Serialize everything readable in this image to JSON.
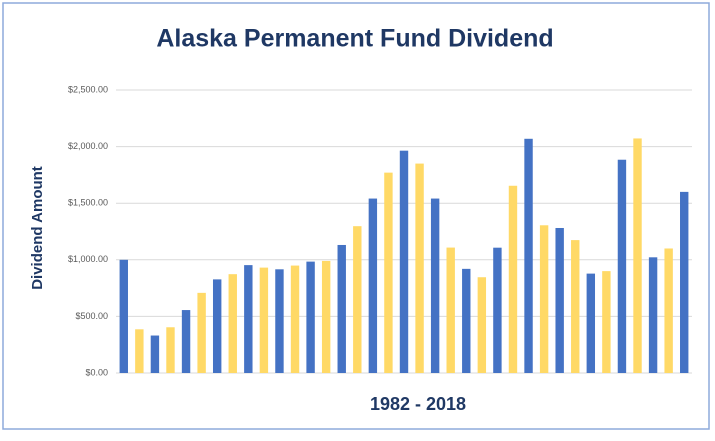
{
  "chart_data": {
    "type": "bar",
    "title": "Alaska Permanent Fund Dividend",
    "x_label": "1982 - 2018",
    "y_label": "Dividend Amount",
    "categories": [
      null,
      null,
      null,
      null,
      null,
      null,
      null,
      null,
      null,
      null,
      null,
      null,
      null,
      null,
      null,
      null,
      null,
      null,
      null,
      null,
      null,
      null,
      null,
      null,
      null,
      null,
      null,
      null,
      null,
      null,
      null,
      null,
      null,
      null,
      null,
      null,
      null
    ],
    "values": [
      1000,
      386,
      331,
      404,
      556,
      708,
      827,
      873,
      953,
      931,
      916,
      949,
      984,
      990,
      1131,
      1297,
      1541,
      1770,
      1964,
      1850,
      1541,
      1108,
      920,
      846,
      1107,
      1654,
      2069,
      1305,
      1281,
      1174,
      878,
      900,
      1884,
      2072,
      1022,
      1100,
      1600
    ],
    "colors": [
      "#4472c4",
      "#ffd966",
      "#4472c4",
      "#ffd966",
      "#4472c4",
      "#ffd966",
      "#4472c4",
      "#ffd966",
      "#4472c4",
      "#ffd966",
      "#4472c4",
      "#ffd966",
      "#4472c4",
      "#ffd966",
      "#4472c4",
      "#ffd966",
      "#4472c4",
      "#ffd966",
      "#4472c4",
      "#ffd966",
      "#4472c4",
      "#ffd966",
      "#4472c4",
      "#ffd966",
      "#4472c4",
      "#ffd966",
      "#4472c4",
      "#ffd966",
      "#4472c4",
      "#ffd966",
      "#4472c4",
      "#ffd966",
      "#4472c4",
      "#ffd966",
      "#4472c4",
      "#ffd966",
      "#4472c4"
    ],
    "ylim": [
      0,
      2500
    ],
    "yticks": [
      {
        "value": 0,
        "label": "$0.00"
      },
      {
        "value": 500,
        "label": "$500.00"
      },
      {
        "value": 1000,
        "label": "$1,000.00"
      },
      {
        "value": 1500,
        "label": "$1,500.00"
      },
      {
        "value": 2000,
        "label": "$2,000.00"
      },
      {
        "value": 2500,
        "label": "$2,500.00"
      }
    ],
    "grid": true
  }
}
